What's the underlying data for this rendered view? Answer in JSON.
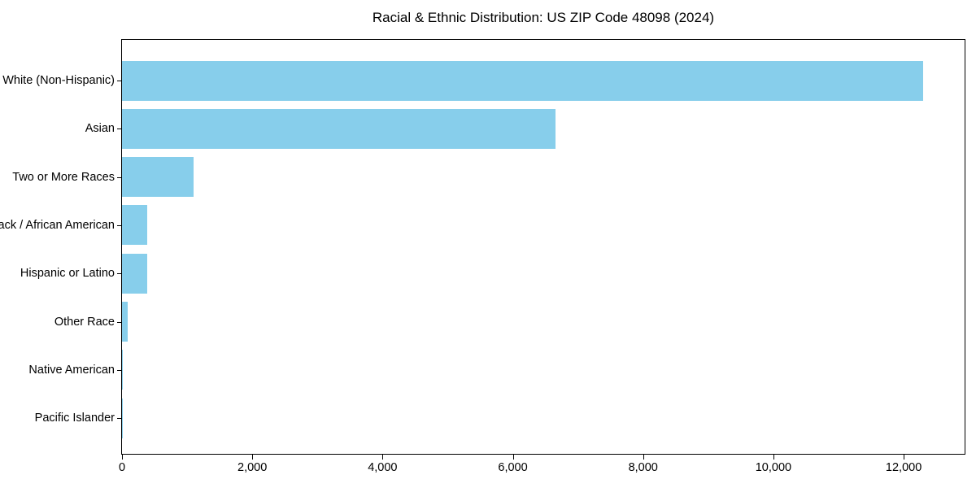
{
  "figure": {
    "title": "Racial & Ethnic Distribution: US ZIP Code 48098 (2024)"
  },
  "colors": {
    "bar": "#87CEEB",
    "axis": "#000000",
    "text": "#000000",
    "background": "#FFFFFF"
  },
  "chart_data": {
    "type": "bar",
    "orientation": "horizontal",
    "title": "Racial & Ethnic Distribution: US ZIP Code 48098 (2024)",
    "categories": [
      "White (Non-Hispanic)",
      "Asian",
      "Two or More Races",
      "Black / African American",
      "Hispanic or Latino",
      "Other Race",
      "Native American",
      "Pacific Islander"
    ],
    "values": [
      12300,
      6650,
      1100,
      390,
      385,
      85,
      10,
      4
    ],
    "xlabel": "",
    "ylabel": "",
    "xlim": [
      0,
      12935
    ],
    "x_ticks": [
      0,
      2000,
      4000,
      6000,
      8000,
      10000,
      12000
    ],
    "x_tick_labels": [
      "0",
      "2,000",
      "4,000",
      "6,000",
      "8,000",
      "10,000",
      "12,000"
    ],
    "bar_color": "#87CEEB",
    "grid": false,
    "legend": false,
    "sort_order": "descending"
  }
}
